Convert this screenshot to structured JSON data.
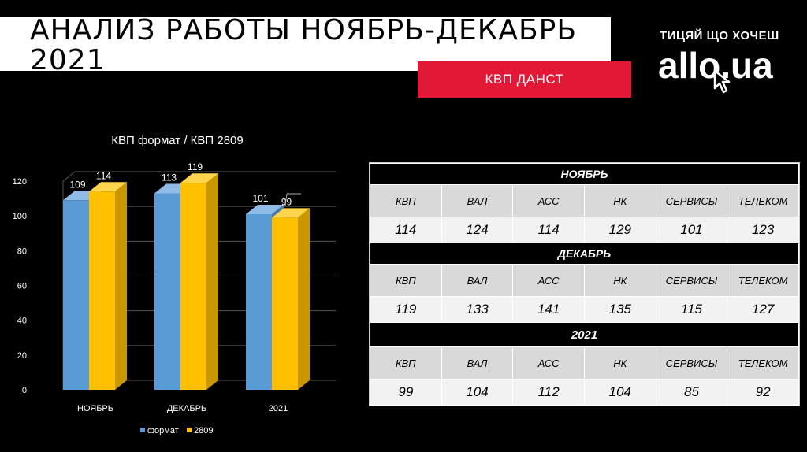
{
  "slide": {
    "title": "АНАЛИЗ  РАБОТЫ  НОЯБРЬ-ДЕКАБРЬ\n2021",
    "badge": "КВП  ДАНСТ",
    "logo_tagline": "ТИЦЯЙ ЩО ХОЧЕШ",
    "logo": "allo.ua"
  },
  "colors": {
    "format": "#5b9bd5",
    "k2809": "#ffc000",
    "badge": "#e31837"
  },
  "chart_data": {
    "type": "bar",
    "title": "КВП формат / КВП 2809",
    "categories": [
      "НОЯБРЬ",
      "ДЕКАБРЬ",
      "2021"
    ],
    "series": [
      {
        "name": "формат",
        "values": [
          109,
          113,
          101
        ]
      },
      {
        "name": "2809",
        "values": [
          114,
          119,
          99
        ]
      }
    ],
    "ylim": [
      0,
      120
    ],
    "yticks": [
      0,
      20,
      40,
      60,
      80,
      100,
      120
    ],
    "grid": true,
    "legend": "bottom"
  },
  "table": {
    "columns": [
      "КВП",
      "ВАЛ",
      "АСС",
      "НК",
      "СЕРВИСЫ",
      "ТЕЛЕКОМ"
    ],
    "sections": [
      {
        "label": "НОЯБРЬ",
        "values": [
          "114",
          "124",
          "114",
          "129",
          "101",
          "123"
        ]
      },
      {
        "label": "ДЕКАБРЬ",
        "values": [
          "119",
          "133",
          "141",
          "135",
          "115",
          "127"
        ]
      },
      {
        "label": "2021",
        "values": [
          "99",
          "104",
          "112",
          "104",
          "85",
          "92"
        ]
      }
    ]
  }
}
